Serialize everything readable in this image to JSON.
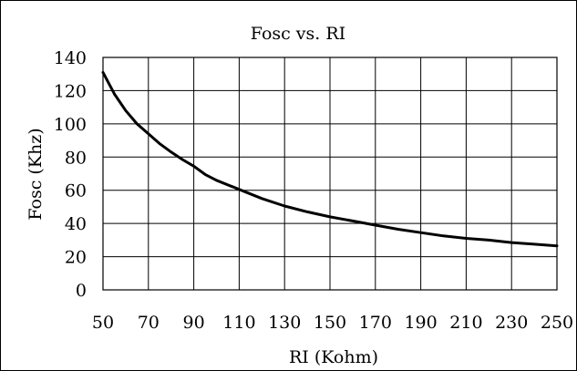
{
  "chart_data": {
    "type": "line",
    "title": "Fosc vs. RI",
    "xlabel": "RI (Kohm)",
    "ylabel": "Fosc (Khz)",
    "xlim": [
      50,
      250
    ],
    "ylim": [
      0,
      140
    ],
    "x_ticks": [
      50,
      70,
      90,
      110,
      130,
      150,
      170,
      190,
      210,
      230,
      250
    ],
    "x_tick_labels": [
      "50",
      "70",
      "90",
      "110",
      "130",
      "150",
      "170",
      "190",
      "210",
      "230",
      "250"
    ],
    "y_ticks": [
      0,
      20,
      40,
      60,
      80,
      100,
      120,
      140
    ],
    "y_tick_labels": [
      "0",
      "20",
      "40",
      "60",
      "80",
      "100",
      "120",
      "140"
    ],
    "grid": true,
    "legend": "none",
    "series": [
      {
        "x": [
          50,
          55,
          60,
          65,
          70,
          75,
          80,
          85,
          90,
          95,
          100,
          110,
          120,
          130,
          140,
          150,
          160,
          170,
          180,
          190,
          200,
          210,
          220,
          230,
          240,
          250
        ],
        "y": [
          131,
          118,
          108,
          100,
          94,
          88,
          83,
          78.5,
          74.5,
          69.5,
          66,
          60.5,
          55,
          50.5,
          47,
          44,
          41.5,
          39,
          36.5,
          34.5,
          32.5,
          31,
          30,
          28.5,
          27.5,
          26.5
        ]
      }
    ],
    "colors": {
      "line": "#000000",
      "grid": "#000000",
      "background": "#ffffff"
    }
  }
}
